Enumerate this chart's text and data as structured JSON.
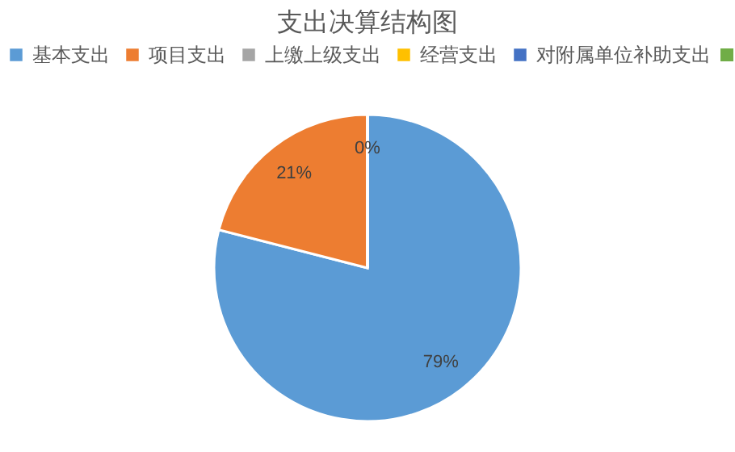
{
  "chart_data": {
    "type": "pie",
    "title": "支出决算结构图",
    "categories": [
      "基本支出",
      "项目支出",
      "上缴上级支出",
      "经营支出",
      "对附属单位补助支出",
      null
    ],
    "values": [
      79,
      21,
      0,
      0,
      0,
      0
    ],
    "colors": [
      "#5b9bd5",
      "#ed7d31",
      "#a5a5a5",
      "#ffc000",
      "#4472c4",
      "#70ad47"
    ],
    "value_labels": [
      "79%",
      "21%",
      "0%",
      null,
      null,
      null
    ],
    "legend": "top"
  }
}
